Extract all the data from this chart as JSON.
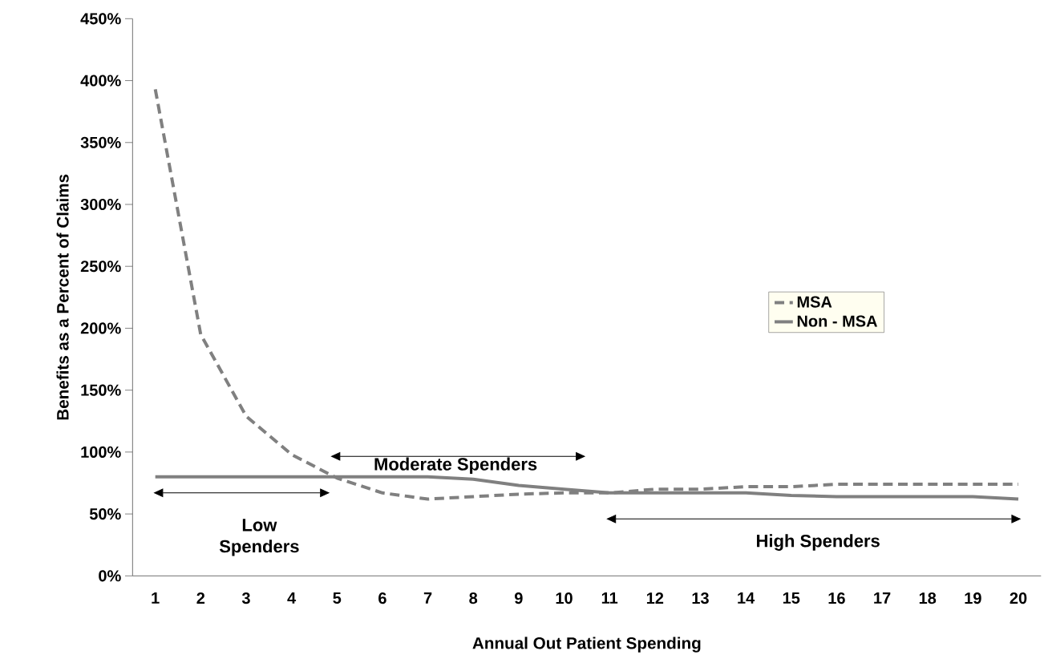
{
  "chart_data": {
    "type": "line",
    "xlabel": "Annual Out Patient Spending",
    "ylabel": "Benefits as a Percent of Claims",
    "categories": [
      "1",
      "2",
      "3",
      "4",
      "5",
      "6",
      "7",
      "8",
      "9",
      "10",
      "11",
      "12",
      "13",
      "14",
      "15",
      "16",
      "17",
      "18",
      "19",
      "20"
    ],
    "series": [
      {
        "name": "MSA",
        "color": "#808080",
        "line_style": "dashed",
        "values": [
          393,
          195,
          129,
          98,
          79,
          67,
          62,
          64,
          66,
          67,
          67,
          70,
          70,
          72,
          72,
          74,
          74,
          74,
          74,
          74
        ]
      },
      {
        "name": "Non - MSA",
        "color": "#808080",
        "line_style": "solid",
        "values": [
          80,
          80,
          80,
          80,
          80,
          80,
          80,
          78,
          73,
          70,
          67,
          67,
          67,
          67,
          65,
          64,
          64,
          64,
          64,
          62
        ]
      }
    ],
    "ylim": [
      0,
      450
    ],
    "yticks": [
      {
        "value": 0,
        "label": "0%"
      },
      {
        "value": 50,
        "label": "50%"
      },
      {
        "value": 100,
        "label": "100%"
      },
      {
        "value": 150,
        "label": "150%"
      },
      {
        "value": 200,
        "label": "200%"
      },
      {
        "value": 250,
        "label": "250%"
      },
      {
        "value": 300,
        "label": "300%"
      },
      {
        "value": 350,
        "label": "350%"
      },
      {
        "value": 400,
        "label": "400%"
      },
      {
        "value": 450,
        "label": "450%"
      }
    ],
    "annotations": [
      "Low Spenders",
      "Moderate Spenders",
      "High Spenders"
    ],
    "legend": "right",
    "grid": false,
    "marker": "none"
  }
}
